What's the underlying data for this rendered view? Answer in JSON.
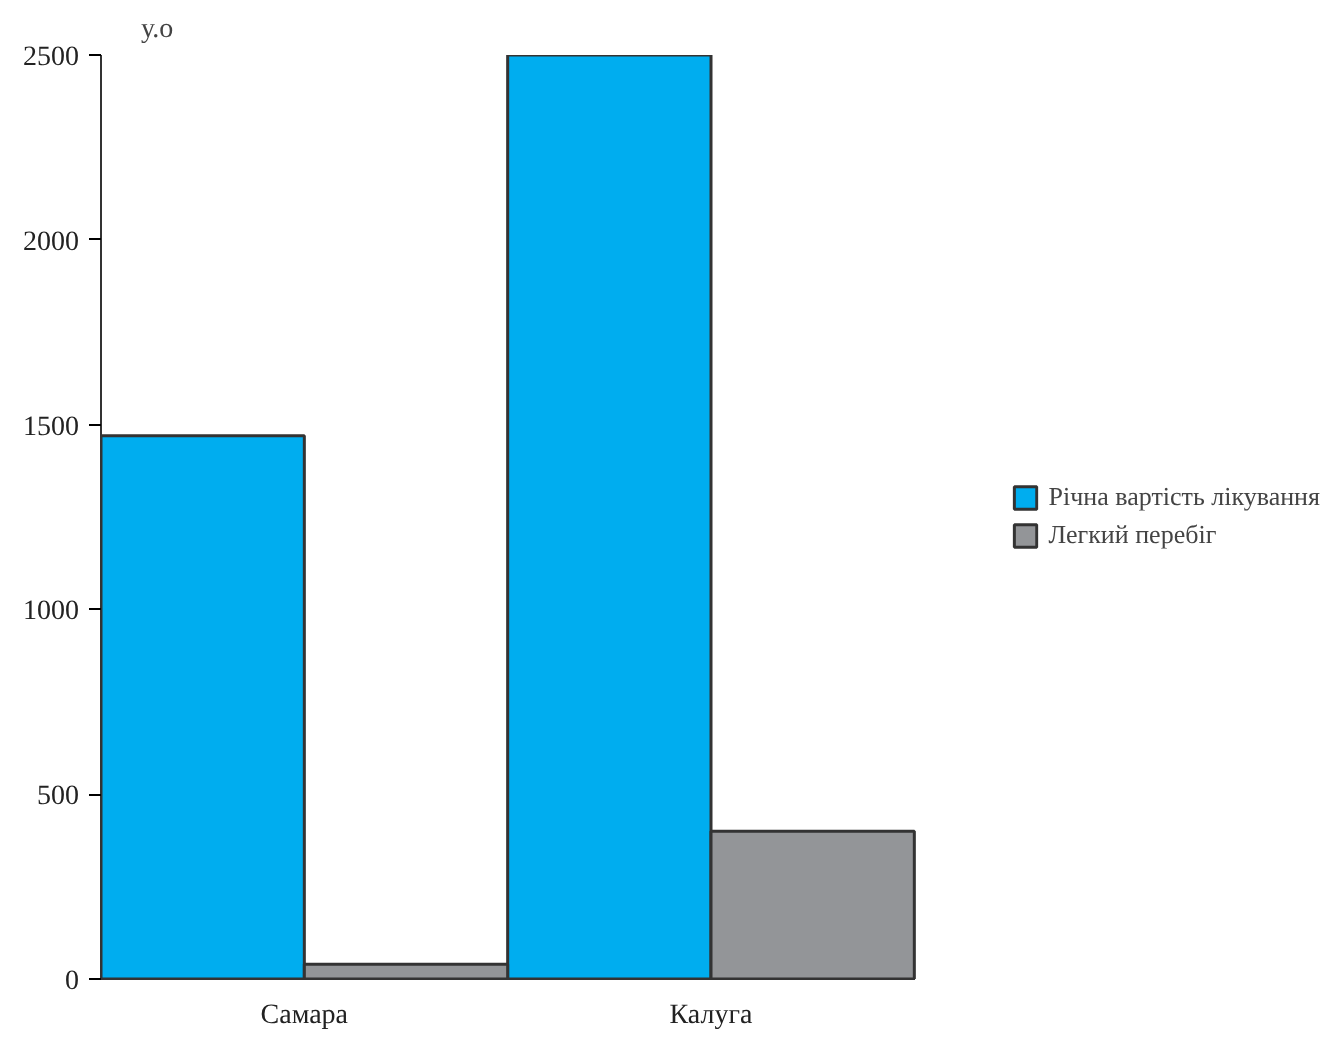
{
  "chart_data": {
    "type": "bar",
    "ylabel": "у.о",
    "categories": [
      "Самара",
      "Калуга"
    ],
    "series": [
      {
        "name": "Річна вартість лікування",
        "color": "#00adef",
        "values": [
          1470,
          2500
        ]
      },
      {
        "name": "Легкий перебіг",
        "color": "#939598",
        "values": [
          40,
          400
        ]
      }
    ],
    "ylim": [
      0,
      2500
    ],
    "yticks": [
      0,
      500,
      1000,
      1500,
      2000,
      2500
    ],
    "legend": "right"
  }
}
